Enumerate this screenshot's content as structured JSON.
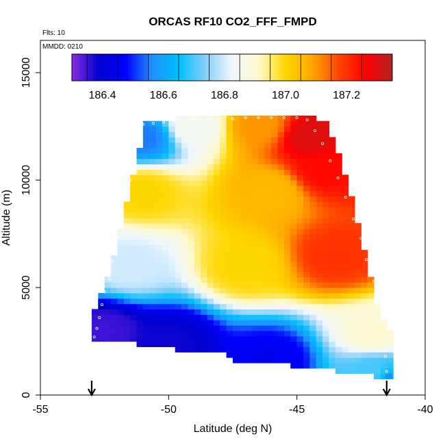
{
  "header": {
    "flights_label": "Flts: 10",
    "date_label": "MMDD: 0210"
  },
  "chart_data": {
    "type": "heatmap",
    "title": "ORCAS RF10 CO2_FFF_FMPD",
    "xlabel": "Latitude (deg N)",
    "ylabel": "Altitude (m)",
    "xlim": [
      -55,
      -40
    ],
    "ylim": [
      0,
      16500
    ],
    "x_ticks": [
      -55,
      -50,
      -45,
      -40
    ],
    "x_tick_labels": [
      "-55",
      "-50",
      "-45",
      "-40"
    ],
    "y_ticks": [
      0,
      5000,
      10000,
      15000
    ],
    "y_tick_labels": [
      "0",
      "5000",
      "10000",
      "15000"
    ],
    "colorbar": {
      "range": [
        186.3,
        187.35
      ],
      "ticks": [
        186.4,
        186.6,
        186.8,
        187.0,
        187.2
      ],
      "tick_labels": [
        "186.4",
        "186.6",
        "186.8",
        "187.0",
        "187.2"
      ],
      "breaks": [
        186.4,
        186.5,
        186.6,
        186.7,
        186.8,
        186.9,
        187.0,
        187.1,
        187.2,
        187.3
      ],
      "colors": [
        "#8a2be2",
        "#0000cd",
        "#0000ff",
        "#1e90ff",
        "#00bfff",
        "#87cefa",
        "#f0f8ff",
        "#fffacd",
        "#ffd700",
        "#ffa500",
        "#ff4500",
        "#ff0000",
        "#b22222"
      ]
    },
    "grid": {
      "lat_min": -53,
      "lat_max": -41.5,
      "lat_step": 0.25,
      "alt_min": 750,
      "alt_max": 13000,
      "alt_step": 250
    },
    "domain_envelope": {
      "lats": [
        -53.0,
        -52.5,
        -52.0,
        -51.5,
        -51.0,
        -50.5,
        -50.0,
        -49.5,
        -49.0,
        -48.5,
        -48.0,
        -47.5,
        -47.0,
        -46.5,
        -46.0,
        -45.5,
        -45.0,
        -44.5,
        -44.0,
        -43.5,
        -43.0,
        -42.5,
        -42.0,
        -41.5
      ],
      "bottom": [
        2600,
        2600,
        2600,
        2600,
        2300,
        2300,
        2300,
        2050,
        2050,
        2050,
        2050,
        1700,
        1700,
        1700,
        1550,
        1550,
        1400,
        1400,
        1400,
        1150,
        1150,
        1150,
        1000,
        900
      ],
      "top": [
        3800,
        5300,
        7500,
        10000,
        12600,
        12700,
        12700,
        12800,
        12900,
        12900,
        12900,
        12900,
        12900,
        12900,
        12900,
        12900,
        12900,
        12800,
        12500,
        11200,
        9000,
        6500,
        4000,
        2800
      ]
    },
    "field_model": {
      "description": "CO2 value decreases toward the lower-left (south, low altitude) and increases toward upper-right (north, high altitude)",
      "anchor_points": [
        {
          "lat": -52.5,
          "alt": 3000,
          "value": 186.35
        },
        {
          "lat": -50.0,
          "alt": 2400,
          "value": 186.38
        },
        {
          "lat": -46.0,
          "alt": 1600,
          "value": 186.45
        },
        {
          "lat": -42.0,
          "alt": 1100,
          "value": 186.7
        },
        {
          "lat": -42.0,
          "alt": 2800,
          "value": 186.9
        },
        {
          "lat": -51.5,
          "alt": 6000,
          "value": 186.8
        },
        {
          "lat": -47.0,
          "alt": 6000,
          "value": 187.0
        },
        {
          "lat": -43.5,
          "alt": 6500,
          "value": 187.2
        },
        {
          "lat": -51.0,
          "alt": 9500,
          "value": 187.0
        },
        {
          "lat": -46.0,
          "alt": 9500,
          "value": 187.05
        },
        {
          "lat": -44.0,
          "alt": 10500,
          "value": 187.25
        },
        {
          "lat": -51.0,
          "alt": 12000,
          "value": 186.55
        },
        {
          "lat": -49.0,
          "alt": 12500,
          "value": 186.85
        },
        {
          "lat": -46.5,
          "alt": 12500,
          "value": 187.1
        },
        {
          "lat": -44.5,
          "alt": 12000,
          "value": 187.3
        },
        {
          "lat": -41.5,
          "alt": 850,
          "value": 186.65
        }
      ]
    },
    "flight_track_markers": [
      {
        "lat": -52.9,
        "alt": 2700
      },
      {
        "lat": -52.8,
        "alt": 3100
      },
      {
        "lat": -52.7,
        "alt": 3600
      },
      {
        "lat": -52.6,
        "alt": 4200
      },
      {
        "lat": -52.5,
        "alt": 4800
      },
      {
        "lat": -52.3,
        "alt": 5400
      },
      {
        "lat": -52.2,
        "alt": 6200
      },
      {
        "lat": -52.0,
        "alt": 7200
      },
      {
        "lat": -51.8,
        "alt": 8200
      },
      {
        "lat": -51.6,
        "alt": 9200
      },
      {
        "lat": -51.5,
        "alt": 10000
      },
      {
        "lat": -51.4,
        "alt": 10900
      },
      {
        "lat": -51.3,
        "alt": 11700
      },
      {
        "lat": -51.2,
        "alt": 12300
      },
      {
        "lat": -51.0,
        "alt": 12600
      },
      {
        "lat": -50.6,
        "alt": 12650
      },
      {
        "lat": -50.2,
        "alt": 12700
      },
      {
        "lat": -49.8,
        "alt": 12700
      },
      {
        "lat": -49.4,
        "alt": 12750
      },
      {
        "lat": -49.0,
        "alt": 12800
      },
      {
        "lat": -48.5,
        "alt": 12800
      },
      {
        "lat": -48.0,
        "alt": 12850
      },
      {
        "lat": -47.5,
        "alt": 12850
      },
      {
        "lat": -47.0,
        "alt": 12900
      },
      {
        "lat": -46.5,
        "alt": 12900
      },
      {
        "lat": -46.0,
        "alt": 12900
      },
      {
        "lat": -45.5,
        "alt": 12900
      },
      {
        "lat": -45.0,
        "alt": 12900
      },
      {
        "lat": -44.6,
        "alt": 12800
      },
      {
        "lat": -44.3,
        "alt": 12300
      },
      {
        "lat": -44.0,
        "alt": 11700
      },
      {
        "lat": -43.7,
        "alt": 10900
      },
      {
        "lat": -43.4,
        "alt": 10100
      },
      {
        "lat": -43.1,
        "alt": 9200
      },
      {
        "lat": -42.8,
        "alt": 8200
      },
      {
        "lat": -42.5,
        "alt": 7300
      },
      {
        "lat": -42.3,
        "alt": 6300
      },
      {
        "lat": -42.0,
        "alt": 5300
      },
      {
        "lat": -41.8,
        "alt": 4300
      },
      {
        "lat": -41.7,
        "alt": 3400
      },
      {
        "lat": -41.6,
        "alt": 2600
      },
      {
        "lat": -41.55,
        "alt": 1800
      },
      {
        "lat": -41.5,
        "alt": 1100
      }
    ],
    "arrows": [
      {
        "lat": -53.0,
        "label": ""
      },
      {
        "lat": -41.5,
        "label": ""
      }
    ]
  }
}
